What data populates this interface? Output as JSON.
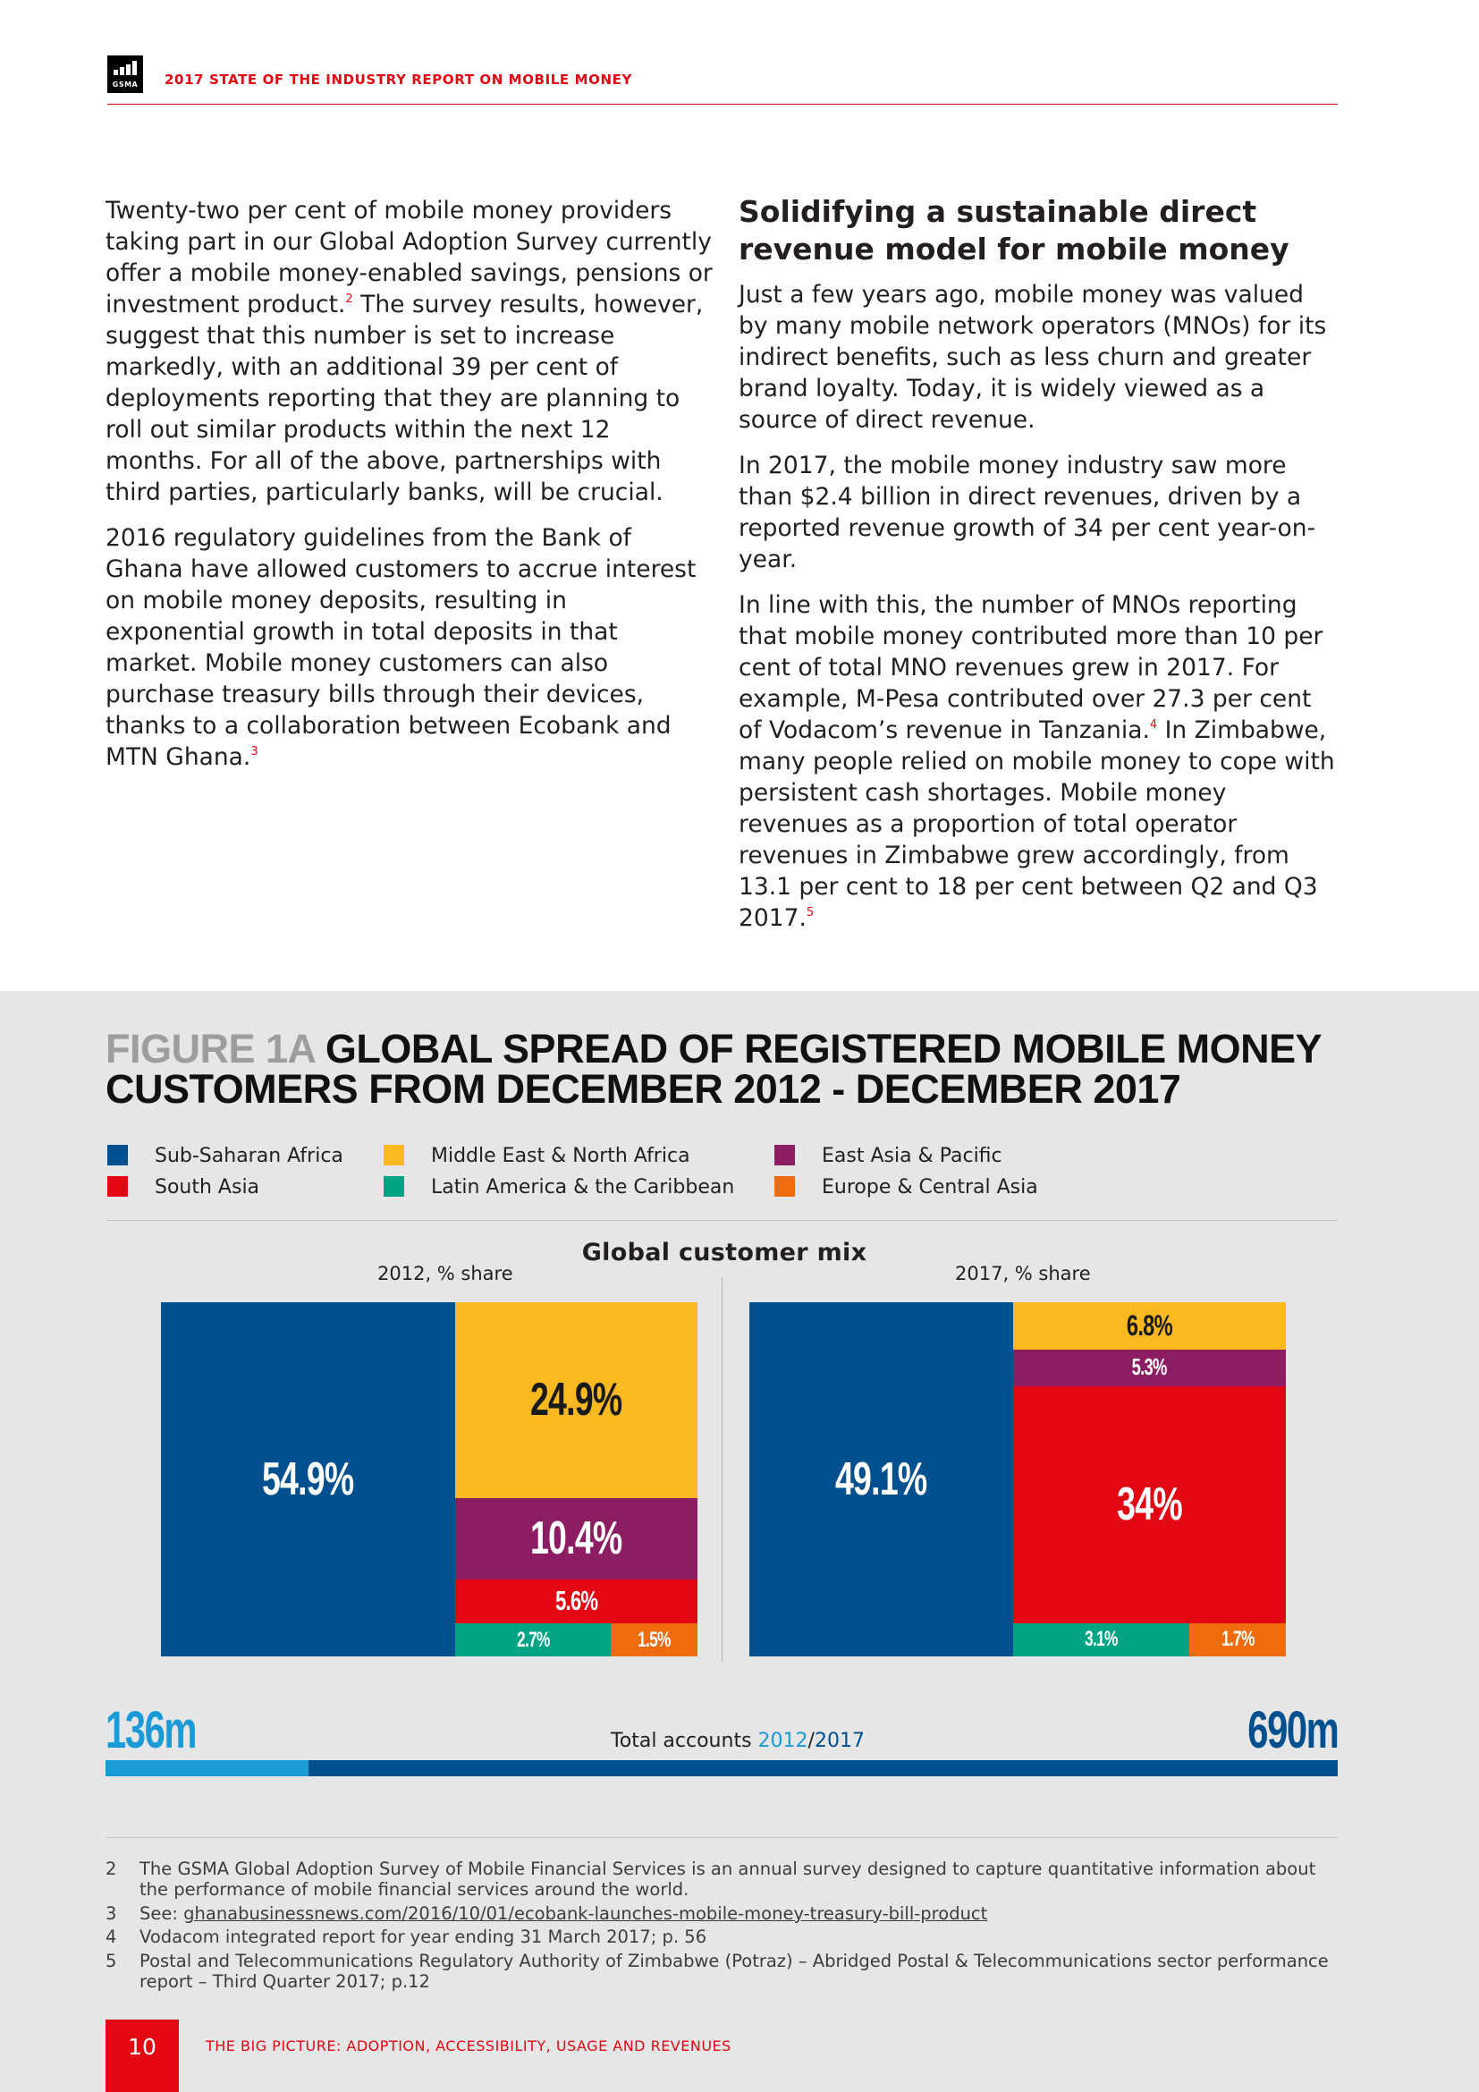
{
  "header": {
    "logo_text": "GSMA",
    "report_title": "2017 STATE OF THE INDUSTRY REPORT ON MOBILE MONEY"
  },
  "left_column": {
    "p1": {
      "text_a": "Twenty-two per cent of mobile money providers taking part in our Global Adoption Survey currently offer a mobile money-enabled savings, pensions or investment product.",
      "fn": "2",
      "text_b": " The survey results, however, suggest that this number is set to increase markedly, with an additional 39 per cent of deployments reporting that they are planning to roll out similar products within the next 12 months. For all of the above, partnerships with third parties, particularly banks, will be crucial."
    },
    "p2": {
      "text_a": "2016 regulatory guidelines from the Bank of Ghana have allowed customers to accrue interest on mobile money deposits, resulting in exponential growth in total deposits in that market. Mobile money customers can also purchase treasury bills through their devices, thanks to a collaboration between Ecobank and MTN Ghana.",
      "fn": "3"
    }
  },
  "right_column": {
    "heading": "Solidifying a sustainable direct revenue model for mobile money",
    "p1": "Just a few years ago, mobile money was valued by many mobile network operators (MNOs) for its indirect benefits, such as less churn and greater brand loyalty. Today, it is widely viewed as a source of direct revenue.",
    "p2": "In 2017, the mobile money industry saw more than $2.4 billion in direct revenues, driven by a reported revenue growth of 34 per cent year-on-year.",
    "p3": {
      "text_a": "In line with this, the number of MNOs reporting that mobile money contributed more than 10 per cent of total MNO revenues grew in 2017. For example, M-Pesa contributed over 27.3 per cent of Vodacom’s revenue in Tanzania.",
      "fn_a": "4",
      "text_b": " In Zimbabwe, many people relied on mobile money to cope with persistent cash shortages. Mobile money revenues as a proportion of total operator revenues in Zimbabwe grew accordingly, from 13.1 per cent to 18 per cent between Q2 and Q3 2017.",
      "fn_b": "5"
    }
  },
  "figure": {
    "number": "FIGURE 1A",
    "title": "GLOBAL SPREAD OF REGISTERED MOBILE MONEY CUSTOMERS FROM DECEMBER 2012 - DECEMBER 2017",
    "legend": [
      {
        "label": "Sub-Saharan Africa",
        "color": "#00508f"
      },
      {
        "label": "South Asia",
        "color": "#e30613"
      },
      {
        "label": "Middle East & North Africa",
        "color": "#fbb921"
      },
      {
        "label": "Latin America & the Caribbean",
        "color": "#00a384"
      },
      {
        "label": "East Asia & Pacific",
        "color": "#8c1d62"
      },
      {
        "label": "Europe & Central Asia",
        "color": "#ef6c0e"
      }
    ],
    "mix_title": "Global customer mix",
    "label_2012": "2012, % share",
    "label_2017": "2017, % share",
    "total_left": "136m",
    "total_right": "690m",
    "total_label_prefix": "Total accounts ",
    "total_label_y1": "2012",
    "total_label_sep": "/",
    "total_label_y2": "2017",
    "color_2012": "#1a9bd7",
    "color_2017": "#00508f"
  },
  "chart_data": [
    {
      "type": "treemap",
      "title": "2012, % share",
      "unit": "%",
      "categories": [
        "Sub-Saharan Africa",
        "Middle East & North Africa",
        "East Asia & Pacific",
        "South Asia",
        "Latin America & the Caribbean",
        "Europe & Central Asia"
      ],
      "values": [
        54.9,
        24.9,
        10.4,
        5.6,
        2.7,
        1.5
      ],
      "labels": [
        "54.9%",
        "24.9%",
        "10.4%",
        "5.6%",
        "2.7%",
        "1.5%"
      ],
      "total_accounts": "136m"
    },
    {
      "type": "treemap",
      "title": "2017, % share",
      "unit": "%",
      "categories": [
        "Sub-Saharan Africa",
        "Middle East & North Africa",
        "East Asia & Pacific",
        "South Asia",
        "Latin America & the Caribbean",
        "Europe & Central Asia"
      ],
      "values": [
        49.1,
        6.8,
        5.3,
        34,
        3.1,
        1.7
      ],
      "labels": [
        "49.1%",
        "6.8%",
        "5.3%",
        "34%",
        "3.1%",
        "1.7%"
      ],
      "total_accounts": "690m"
    }
  ],
  "footnotes": [
    {
      "n": "2",
      "text": "The GSMA Global Adoption Survey of Mobile Financial Services is an annual survey designed to capture quantitative information about the performance of mobile financial services around the world."
    },
    {
      "n": "3",
      "prefix": "See: ",
      "link": "ghanabusinessnews.com/2016/10/01/ecobank-launches-mobile-money-treasury-bill-product"
    },
    {
      "n": "4",
      "text": "Vodacom integrated report for year ending 31 March 2017; p. 56"
    },
    {
      "n": "5",
      "text": "Postal and Telecommunications Regulatory Authority of Zimbabwe (Potraz) – Abridged Postal & Telecommunications sector performance report – Third Quarter 2017; p.12"
    }
  ],
  "footer": {
    "page_number": "10",
    "section_title": "THE BIG PICTURE: ADOPTION, ACCESSIBILITY, USAGE AND REVENUES"
  }
}
